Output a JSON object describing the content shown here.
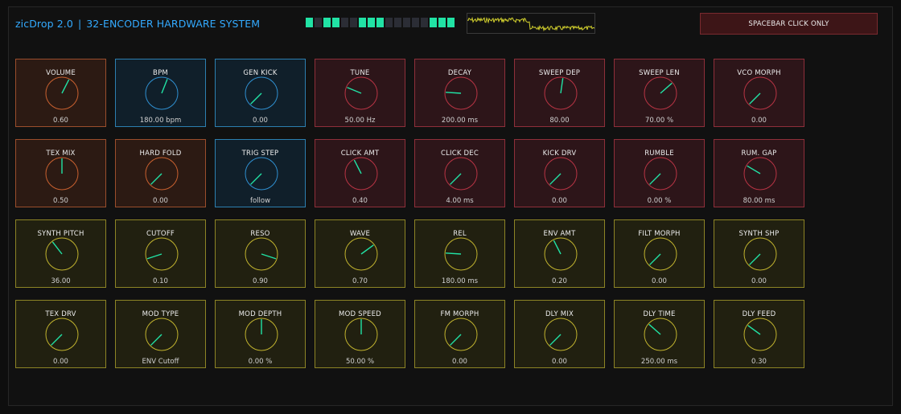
{
  "header": {
    "app_name": "zicDrop 2.0",
    "separator": "|",
    "subtitle": "32-ENCODER HARDWARE SYSTEM",
    "spacebar_button": "SPACEBAR CLICK ONLY"
  },
  "sequencer": {
    "steps": [
      true,
      false,
      true,
      true,
      false,
      false,
      true,
      true,
      true,
      false,
      false,
      false,
      false,
      false,
      true,
      true,
      true
    ]
  },
  "colors": {
    "title": "#33aaff",
    "step_on": "#21e3a5",
    "needle": "#21e3a5",
    "scope_wave": "#d4d22e",
    "ring": {
      "orange": "#c8602f",
      "blue": "#2f8fd0",
      "red": "#b83444",
      "yellow": "#c0b22e"
    }
  },
  "encoders": [
    {
      "label": "VOLUME",
      "value": "0.60",
      "group": "orange",
      "level": 0.6
    },
    {
      "label": "BPM",
      "value": "180.00 bpm",
      "group": "blue",
      "level": 0.58
    },
    {
      "label": "GEN KICK",
      "value": "0.00",
      "group": "blue",
      "level": 0.0
    },
    {
      "label": "TUNE",
      "value": "50.00 Hz",
      "group": "red",
      "level": 0.25
    },
    {
      "label": "DECAY",
      "value": "200.00 ms",
      "group": "red",
      "level": 0.18
    },
    {
      "label": "SWEEP DEP",
      "value": "80.00",
      "group": "red",
      "level": 0.53
    },
    {
      "label": "SWEEP LEN",
      "value": "70.00 %",
      "group": "red",
      "level": 0.68
    },
    {
      "label": "VCO MORPH",
      "value": "0.00",
      "group": "red",
      "level": 0.0
    },
    {
      "label": "TEX MIX",
      "value": "0.50",
      "group": "orange",
      "level": 0.5
    },
    {
      "label": "HARD FOLD",
      "value": "0.00",
      "group": "orange",
      "level": 0.0
    },
    {
      "label": "TRIG STEP",
      "value": "follow",
      "group": "blue",
      "level": 0.0
    },
    {
      "label": "CLICK AMT",
      "value": "0.40",
      "group": "red",
      "level": 0.4
    },
    {
      "label": "CLICK DEC",
      "value": "4.00 ms",
      "group": "red",
      "level": 0.0
    },
    {
      "label": "KICK DRV",
      "value": "0.00",
      "group": "red",
      "level": 0.0
    },
    {
      "label": "RUMBLE",
      "value": "0.00 %",
      "group": "red",
      "level": 0.0
    },
    {
      "label": "RUM. GAP",
      "value": "80.00 ms",
      "group": "red",
      "level": 0.28
    },
    {
      "label": "SYNTH PITCH",
      "value": "36.00",
      "group": "yellow",
      "level": 0.36
    },
    {
      "label": "CUTOFF",
      "value": "0.10",
      "group": "yellow",
      "level": 0.1
    },
    {
      "label": "RESO",
      "value": "0.90",
      "group": "yellow",
      "level": 0.9
    },
    {
      "label": "WAVE",
      "value": "0.70",
      "group": "yellow",
      "level": 0.7
    },
    {
      "label": "REL",
      "value": "180.00 ms",
      "group": "yellow",
      "level": 0.18
    },
    {
      "label": "ENV AMT",
      "value": "0.20",
      "group": "yellow",
      "level": 0.4
    },
    {
      "label": "FILT MORPH",
      "value": "0.00",
      "group": "yellow",
      "level": 0.0
    },
    {
      "label": "SYNTH SHP",
      "value": "0.00",
      "group": "yellow",
      "level": 0.0
    },
    {
      "label": "TEX DRV",
      "value": "0.00",
      "group": "yellow",
      "level": 0.0
    },
    {
      "label": "MOD TYPE",
      "value": "ENV Cutoff",
      "group": "yellow",
      "level": 0.0
    },
    {
      "label": "MOD DEPTH",
      "value": "0.00 %",
      "group": "yellow",
      "level": 0.5
    },
    {
      "label": "MOD SPEED",
      "value": "50.00 %",
      "group": "yellow",
      "level": 0.5
    },
    {
      "label": "FM MORPH",
      "value": "0.00",
      "group": "yellow",
      "level": 0.0
    },
    {
      "label": "DLY MIX",
      "value": "0.00",
      "group": "yellow",
      "level": 0.0
    },
    {
      "label": "DLY TIME",
      "value": "250.00 ms",
      "group": "yellow",
      "level": 0.32
    },
    {
      "label": "DLY FEED",
      "value": "0.30",
      "group": "yellow",
      "level": 0.3
    }
  ]
}
